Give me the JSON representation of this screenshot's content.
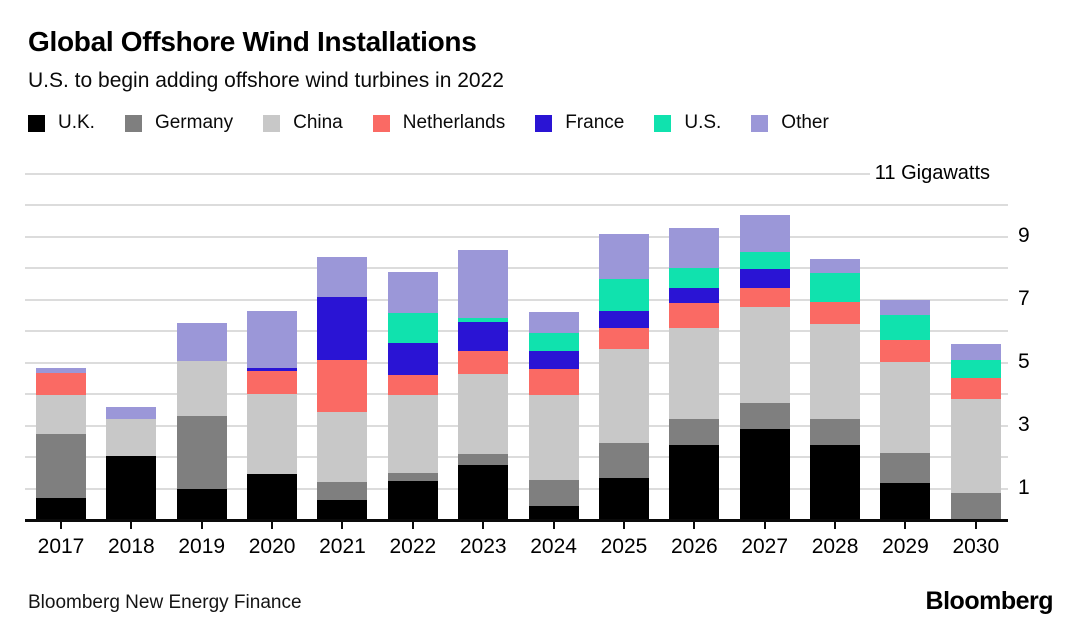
{
  "header": {
    "title": "Global Offshore Wind Installations",
    "subtitle": "U.S. to begin adding offshore wind turbines in 2022"
  },
  "footer": {
    "source": "Bloomberg New Energy Finance",
    "brand": "Bloomberg"
  },
  "chart_data": {
    "type": "bar",
    "stacked": true,
    "title": "Global Offshore Wind Installations",
    "subtitle": "U.S. to begin adding offshore wind turbines in 2022",
    "unit": "Gigawatts",
    "grid": true,
    "legend_position": "top",
    "categories": [
      "2017",
      "2018",
      "2019",
      "2020",
      "2021",
      "2022",
      "2023",
      "2024",
      "2025",
      "2026",
      "2027",
      "2028",
      "2029",
      "2030"
    ],
    "series": [
      {
        "name": "U.K.",
        "color": "#000000",
        "values": [
          0.7,
          2.03,
          1.0,
          1.46,
          0.63,
          1.24,
          1.74,
          0.44,
          1.33,
          2.39,
          2.88,
          2.39,
          1.19,
          0.0
        ]
      },
      {
        "name": "Germany",
        "color": "#7f7f7f",
        "values": [
          2.05,
          0.0,
          2.3,
          0.0,
          0.58,
          0.26,
          0.35,
          0.83,
          1.11,
          0.81,
          0.85,
          0.81,
          0.93,
          0.85
        ]
      },
      {
        "name": "China",
        "color": "#c8c8c8",
        "values": [
          1.22,
          1.18,
          1.77,
          2.56,
          2.23,
          2.47,
          2.54,
          2.7,
          3.01,
          2.89,
          3.03,
          3.02,
          2.91,
          3.01
        ]
      },
      {
        "name": "Netherlands",
        "color": "#fa6a64",
        "values": [
          0.69,
          0.0,
          0.0,
          0.72,
          1.66,
          0.63,
          0.74,
          0.82,
          0.64,
          0.8,
          0.63,
          0.72,
          0.69,
          0.64
        ]
      },
      {
        "name": "France",
        "color": "#2a14d4",
        "values": [
          0.0,
          0.0,
          0.0,
          0.08,
          2.0,
          1.03,
          0.93,
          0.58,
          0.55,
          0.5,
          0.58,
          0.0,
          0.0,
          0.0
        ]
      },
      {
        "name": "U.S.",
        "color": "#10e2ae",
        "values": [
          0.0,
          0.0,
          0.0,
          0.0,
          0.0,
          0.94,
          0.13,
          0.58,
          1.02,
          0.61,
          0.56,
          0.9,
          0.79,
          0.6
        ]
      },
      {
        "name": "Other",
        "color": "#9b97d8",
        "values": [
          0.18,
          0.37,
          1.2,
          1.82,
          1.27,
          1.3,
          2.14,
          0.67,
          1.45,
          1.27,
          1.16,
          0.45,
          0.49,
          0.51
        ]
      }
    ],
    "y_axis": {
      "max": 11,
      "min": 0,
      "gridline_step": 1,
      "max_label": "11 Gigawatts",
      "tick_values": [
        1,
        3,
        5,
        7,
        9
      ],
      "tick_labels": [
        "1",
        "3",
        "5",
        "7",
        "9"
      ]
    }
  }
}
